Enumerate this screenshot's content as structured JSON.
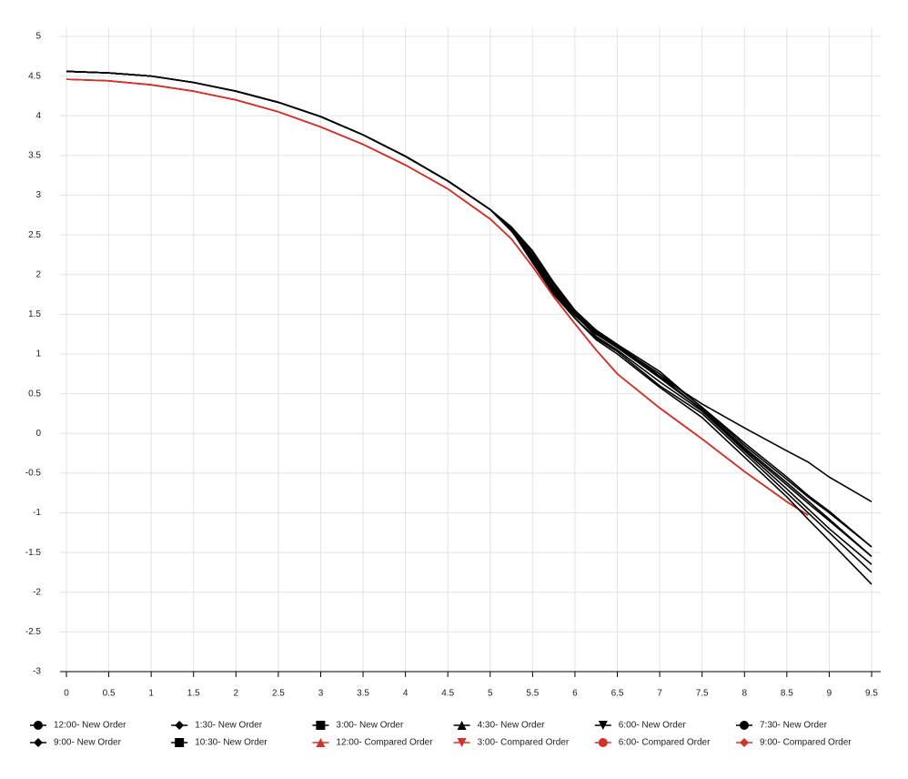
{
  "chart_data": {
    "type": "line",
    "x": [
      0,
      0.5,
      1,
      1.5,
      2,
      2.5,
      3,
      3.5,
      4,
      4.5,
      5,
      5.25,
      5.5,
      5.75,
      6,
      6.25,
      6.5,
      7,
      7.5,
      8,
      8.5,
      8.75,
      9,
      9.5
    ],
    "xlim": [
      0,
      9.5
    ],
    "xticks": [
      0,
      0.5,
      1,
      1.5,
      2,
      2.5,
      3,
      3.5,
      4,
      4.5,
      5,
      5.5,
      6,
      6.5,
      7,
      7.5,
      8,
      8.5,
      9,
      9.5
    ],
    "ylim": [
      -3,
      5
    ],
    "yticks": [
      -3,
      -2.5,
      -2,
      -1.5,
      -1,
      -0.5,
      0,
      0.5,
      1,
      1.5,
      2,
      2.5,
      3,
      3.5,
      4,
      4.5,
      5
    ],
    "grid": true,
    "legend": "bottom",
    "series": [
      {
        "name": "12:00- New Order",
        "color": "#000000",
        "marker": "circle",
        "values": [
          4.56,
          4.54,
          4.5,
          4.42,
          4.31,
          4.17,
          3.99,
          3.76,
          3.49,
          3.18,
          2.82,
          2.58,
          2.25,
          1.85,
          1.52,
          1.3,
          1.12,
          0.72,
          0.37,
          0.07,
          -0.22,
          -0.36,
          -0.55,
          -0.86
        ]
      },
      {
        "name": "1:30- New Order",
        "color": "#000000",
        "marker": "diamond",
        "values": [
          4.56,
          4.54,
          4.5,
          4.42,
          4.31,
          4.17,
          3.99,
          3.76,
          3.49,
          3.18,
          2.82,
          2.6,
          2.3,
          1.9,
          1.55,
          1.3,
          1.12,
          0.78,
          0.32,
          -0.15,
          -0.58,
          -0.8,
          -1.0,
          -1.43
        ]
      },
      {
        "name": "3:00- New Order",
        "color": "#000000",
        "marker": "square",
        "values": [
          4.56,
          4.54,
          4.5,
          4.42,
          4.31,
          4.17,
          3.99,
          3.76,
          3.49,
          3.18,
          2.82,
          2.55,
          2.2,
          1.8,
          1.48,
          1.25,
          1.08,
          0.7,
          0.3,
          -0.2,
          -0.65,
          -0.88,
          -1.1,
          -1.55
        ]
      },
      {
        "name": "4:30- New Order",
        "color": "#000000",
        "marker": "triangle",
        "values": [
          4.56,
          4.54,
          4.5,
          4.42,
          4.31,
          4.17,
          3.99,
          3.76,
          3.49,
          3.18,
          2.82,
          2.57,
          2.22,
          1.82,
          1.5,
          1.22,
          1.05,
          0.65,
          0.28,
          -0.22,
          -0.7,
          -0.95,
          -1.2,
          -1.65
        ]
      },
      {
        "name": "6:00- New Order",
        "color": "#000000",
        "marker": "triangle-down",
        "values": [
          4.56,
          4.54,
          4.5,
          4.42,
          4.31,
          4.17,
          3.99,
          3.76,
          3.49,
          3.18,
          2.82,
          2.56,
          2.15,
          1.75,
          1.45,
          1.2,
          1.03,
          0.6,
          0.25,
          -0.25,
          -0.75,
          -1.0,
          -1.25,
          -1.75
        ]
      },
      {
        "name": "7:30- New Order",
        "color": "#000000",
        "marker": "circle",
        "values": [
          4.56,
          4.54,
          4.5,
          4.42,
          4.31,
          4.17,
          3.99,
          3.76,
          3.49,
          3.18,
          2.82,
          2.58,
          2.18,
          1.78,
          1.45,
          1.18,
          1.0,
          0.58,
          0.2,
          -0.3,
          -0.8,
          -1.08,
          -1.35,
          -1.9
        ]
      },
      {
        "name": "9:00- New Order",
        "color": "#000000",
        "marker": "diamond",
        "values": [
          4.56,
          4.54,
          4.5,
          4.42,
          4.31,
          4.17,
          3.99,
          3.76,
          3.49,
          3.18,
          2.82,
          2.6,
          2.28,
          1.88,
          1.53,
          1.28,
          1.1,
          0.75,
          0.33,
          -0.12,
          -0.55,
          -0.78,
          -0.98,
          -1.43
        ]
      },
      {
        "name": "10:30- New Order",
        "color": "#000000",
        "marker": "square",
        "values": [
          4.56,
          4.54,
          4.5,
          4.42,
          4.31,
          4.17,
          3.99,
          3.76,
          3.49,
          3.18,
          2.82,
          2.55,
          2.22,
          1.83,
          1.5,
          1.27,
          1.09,
          0.72,
          0.3,
          -0.18,
          -0.62,
          -0.85,
          -1.08,
          -1.55
        ]
      },
      {
        "name": "12:00- Compared Order",
        "color": "#d0332b",
        "marker": "triangle",
        "values": [
          4.46,
          4.44,
          4.39,
          4.31,
          4.2,
          4.05,
          3.86,
          3.64,
          3.38,
          3.08,
          2.7,
          2.45,
          2.1,
          1.72,
          1.38,
          1.05,
          0.75,
          0.32,
          -0.07,
          -0.48,
          -0.86,
          -1.03,
          null,
          null
        ]
      },
      {
        "name": "3:00- Compared Order",
        "color": "#d0332b",
        "marker": "triangle-down",
        "values": [
          4.46,
          4.44,
          4.39,
          4.31,
          4.2,
          4.05,
          3.86,
          3.64,
          3.38,
          3.08,
          2.7,
          2.45,
          2.1,
          1.72,
          1.38,
          1.05,
          0.75,
          0.32,
          -0.07,
          -0.48,
          -0.86,
          -1.03,
          null,
          null
        ]
      },
      {
        "name": "6:00- Compared Order",
        "color": "#d0332b",
        "marker": "circle",
        "values": [
          4.46,
          4.44,
          4.39,
          4.31,
          4.2,
          4.05,
          3.86,
          3.64,
          3.38,
          3.08,
          2.7,
          2.45,
          2.1,
          1.72,
          1.38,
          1.05,
          0.75,
          0.32,
          -0.07,
          -0.48,
          -0.86,
          -1.03,
          null,
          null
        ]
      },
      {
        "name": "9:00- Compared Order",
        "color": "#d0332b",
        "marker": "diamond",
        "values": [
          4.46,
          4.44,
          4.39,
          4.31,
          4.2,
          4.05,
          3.86,
          3.64,
          3.38,
          3.08,
          2.7,
          2.45,
          2.1,
          1.72,
          1.38,
          1.05,
          0.75,
          0.32,
          -0.07,
          -0.48,
          -0.86,
          -1.03,
          null,
          null
        ]
      }
    ]
  }
}
